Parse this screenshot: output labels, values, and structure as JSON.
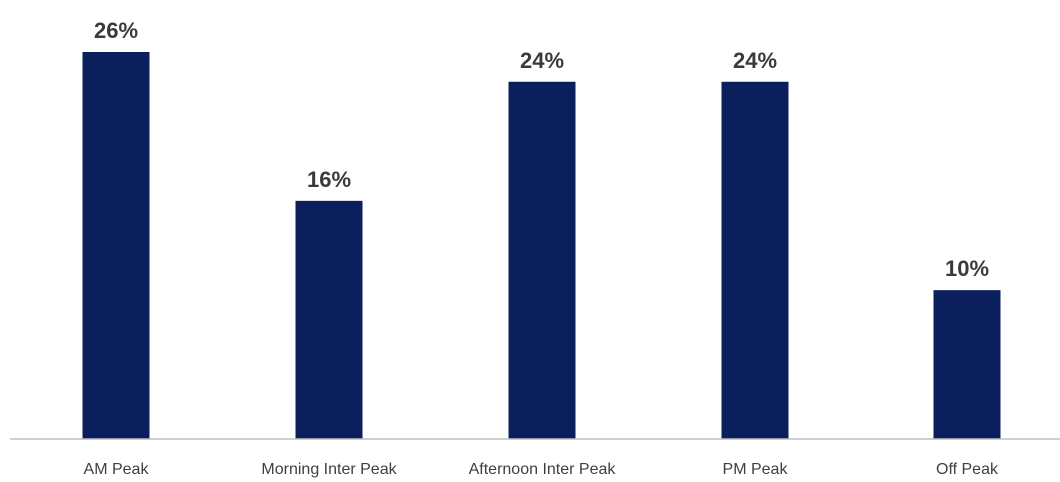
{
  "chart_data": {
    "type": "bar",
    "categories": [
      "AM Peak",
      "Morning Inter Peak",
      "Afternoon Inter Peak",
      "PM Peak",
      "Off Peak"
    ],
    "values": [
      26,
      16,
      24,
      24,
      10
    ],
    "data_labels": [
      "26%",
      "16%",
      "24%",
      "24%",
      "10%"
    ],
    "unit": "%",
    "title": "",
    "xlabel": "",
    "ylabel": "",
    "ylim": [
      0,
      26
    ],
    "grid": false,
    "legend": "none",
    "bar_color": "#0b1f5c",
    "axis_color": "#bfbfbf"
  }
}
